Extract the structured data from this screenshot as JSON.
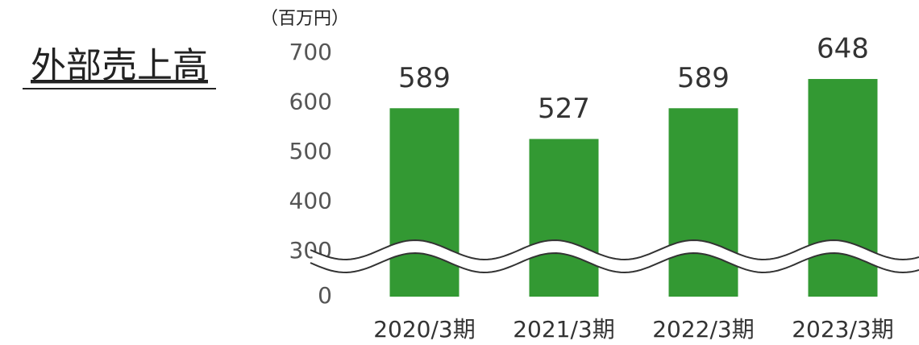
{
  "chart_data": {
    "type": "bar",
    "title": "外部売上高",
    "y_unit": "（百万円）",
    "categories": [
      "2020/3期",
      "2021/3期",
      "2022/3期",
      "2023/3期"
    ],
    "values": [
      589,
      527,
      589,
      648
    ],
    "color": "#339933",
    "ylim": [
      0,
      700
    ],
    "yticks": [
      0,
      300,
      400,
      500,
      600,
      700
    ],
    "axis_break": true
  }
}
